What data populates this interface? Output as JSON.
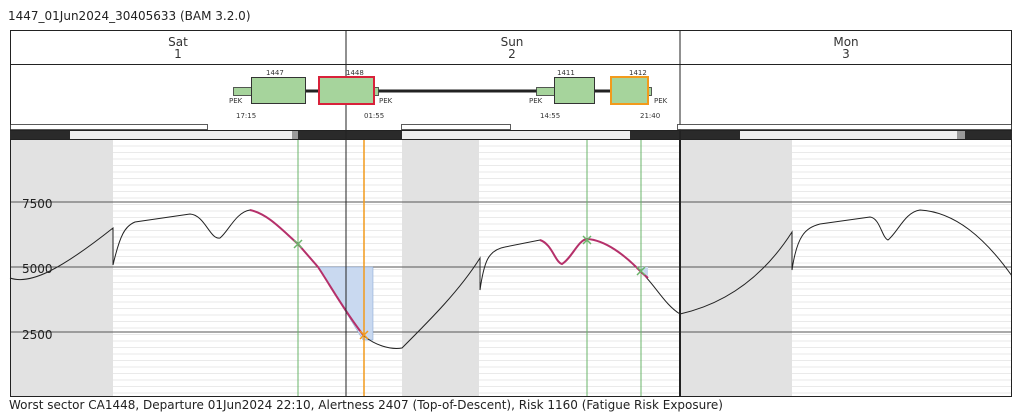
{
  "title": "1447_01Jun2024_30405633 (BAM 3.2.0)",
  "footer": "Worst sector CA1448, Departure 01Jun2024 22:10, Alertness 2407 (Top-of-Descent), Risk 1160 (Fatigue Risk Exposure)",
  "days": [
    {
      "name": "Sat",
      "num": "1"
    },
    {
      "name": "Sun",
      "num": "2"
    },
    {
      "name": "Mon",
      "num": "3"
    }
  ],
  "flights": [
    {
      "number": "1447",
      "dep": "PEK",
      "dep_time": "17:15",
      "highlight": "none"
    },
    {
      "number": "1448",
      "arr": "PEK",
      "arr_time": "01:55",
      "highlight": "red"
    },
    {
      "number": "1411",
      "dep": "PEK",
      "dep_time": "14:55",
      "highlight": "none"
    },
    {
      "number": "1412",
      "arr": "PEK",
      "arr_time": "21:40",
      "highlight": "orange"
    }
  ],
  "colors": {
    "duty_box": "#a6d49c",
    "red_highlight": "#d8213a",
    "orange_highlight": "#f29a1c",
    "fatigue_curve": "#b5306a",
    "risk_fill": "#c9d9f0",
    "marker_green": "#6ab46a",
    "marker_orange": "#f29a1c",
    "night_band": "#e2e2e2"
  },
  "chart_data": {
    "type": "line",
    "y_ticks": [
      2500,
      5000,
      7500
    ],
    "ylim": [
      0,
      10000
    ],
    "grid": true
  }
}
